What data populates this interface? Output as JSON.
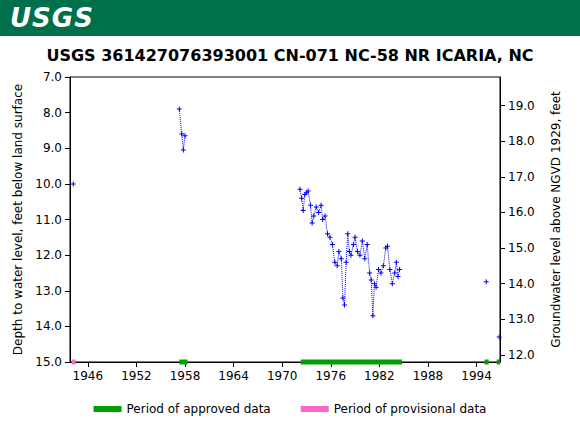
{
  "header": {
    "logo": "USGS"
  },
  "chart_data": {
    "type": "line",
    "title": "USGS 361427076393001 CN-071 NC-58 NR ICARIA, NC",
    "y_label": "Depth to water level, feet below land surface",
    "y2_label": "Groundwater level above NGVD 1929, feet",
    "grid": false,
    "xlim": [
      1943.8,
      1996.9
    ],
    "xticks": [
      1946,
      1952,
      1958,
      1964,
      1970,
      1976,
      1982,
      1988,
      1994
    ],
    "ylim": [
      7.0,
      15.0
    ],
    "yticks": [
      {
        "value": 7,
        "label": "7.0"
      },
      {
        "value": 8,
        "label": "8.0"
      },
      {
        "value": 9,
        "label": "9.0"
      },
      {
        "value": 10,
        "label": "10.0"
      },
      {
        "value": 11,
        "label": "11.0"
      },
      {
        "value": 12,
        "label": "12.0"
      },
      {
        "value": 13,
        "label": "13.0"
      },
      {
        "value": 14,
        "label": "14.0"
      },
      {
        "value": 15,
        "label": "15.0"
      }
    ],
    "y2lim": [
      11.8,
      19.8
    ],
    "y2ticks": [
      {
        "value": 12,
        "label": "12.0"
      },
      {
        "value": 13,
        "label": "13.0"
      },
      {
        "value": 14,
        "label": "14.0"
      },
      {
        "value": 15,
        "label": "15.0"
      },
      {
        "value": 16,
        "label": "16.0"
      },
      {
        "value": 17,
        "label": "17.0"
      },
      {
        "value": 18,
        "label": "18.0"
      },
      {
        "value": 19,
        "label": "19.0"
      }
    ],
    "x": [
      1944.2,
      1950,
      1957.3,
      1957.6,
      1957.8,
      1958.0,
      1965,
      1972.2,
      1972.4,
      1972.6,
      1972.8,
      1973.0,
      1973.2,
      1973.5,
      1973.7,
      1973.9,
      1974.2,
      1974.5,
      1974.8,
      1975.0,
      1975.3,
      1975.6,
      1975.9,
      1976.2,
      1976.5,
      1976.8,
      1977.0,
      1977.3,
      1977.5,
      1977.7,
      1977.9,
      1978.1,
      1978.3,
      1978.5,
      1978.8,
      1979.0,
      1979.3,
      1979.6,
      1979.9,
      1980.2,
      1980.5,
      1980.8,
      1981.0,
      1981.2,
      1981.4,
      1981.6,
      1981.9,
      1982.2,
      1982.5,
      1982.8,
      1983.0,
      1983.3,
      1983.6,
      1983.9,
      1984.1,
      1984.3,
      1984.5,
      1990,
      1995.2,
      1996.0,
      1996.8
    ],
    "series": [
      {
        "color": "#0000ff",
        "marker": "plus",
        "line_style": "dotted",
        "values": [
          10.0,
          null,
          7.9,
          8.6,
          9.05,
          8.65,
          null,
          10.15,
          10.4,
          10.75,
          10.3,
          10.25,
          10.2,
          10.6,
          11.1,
          10.9,
          10.65,
          10.8,
          10.6,
          11.0,
          10.9,
          11.4,
          11.5,
          11.7,
          12.2,
          12.3,
          11.9,
          12.1,
          13.2,
          13.4,
          12.2,
          11.4,
          11.9,
          12.0,
          11.7,
          11.5,
          11.9,
          12.0,
          11.6,
          12.1,
          11.7,
          12.5,
          12.7,
          13.7,
          12.8,
          12.9,
          12.4,
          12.5,
          12.3,
          11.8,
          11.75,
          12.4,
          12.8,
          12.5,
          12.2,
          12.6,
          12.4,
          null,
          12.75,
          null,
          14.3
        ]
      },
      {
        "name": "Period of approved data",
        "type": "period",
        "color": "#00a000",
        "periods": [
          [
            1957.3,
            1958.3
          ],
          [
            1972.3,
            1984.8
          ],
          [
            1995.0,
            1995.5
          ],
          [
            1996.5,
            1996.9
          ]
        ]
      },
      {
        "name": "Period of provisional data",
        "type": "period",
        "color": "#ff66cc",
        "periods": [
          [
            1944.0,
            1944.5
          ]
        ]
      }
    ]
  }
}
